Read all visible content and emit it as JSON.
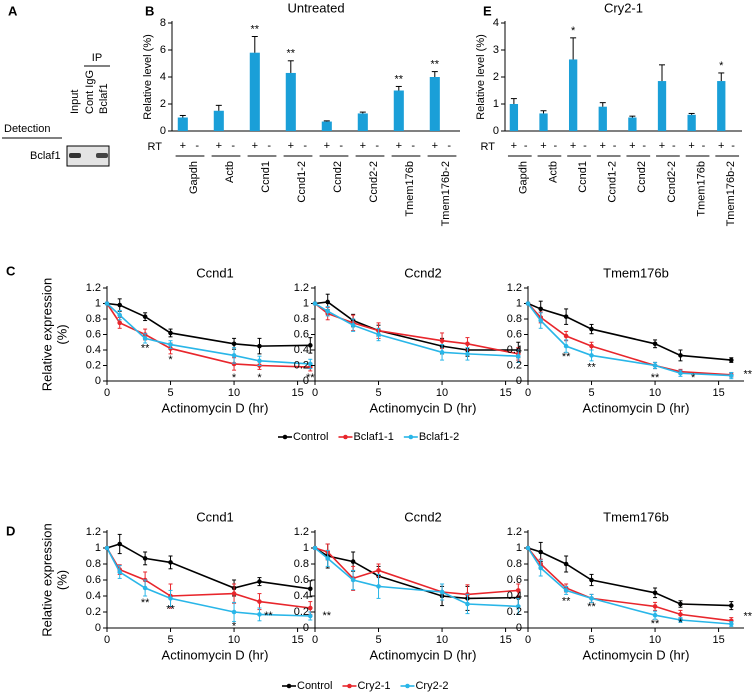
{
  "blot": {
    "panel": "A",
    "ip_label": "IP",
    "lanes": [
      "Input",
      "Cont IgG",
      "Bclaf1"
    ],
    "detection_header": "Detection",
    "rows": [
      "Bclaf1"
    ]
  },
  "chart_data": [
    {
      "type": "bar",
      "panel": "B",
      "title": "Untreated",
      "ylabel": "Relative level (%)",
      "row_label": "RT",
      "categories": [
        "Gapdh",
        "Actb",
        "Ccnd1",
        "Ccnd1-2",
        "Ccnd2",
        "Ccnd2-2",
        "Tmem176b",
        "Tmem176b-2"
      ],
      "series": [
        {
          "name": "+",
          "color": "#1a9fd8",
          "values": [
            1.0,
            1.5,
            5.8,
            4.3,
            0.7,
            1.3,
            3.0,
            4.0
          ],
          "errors": [
            0.15,
            0.4,
            1.2,
            0.9,
            0.05,
            0.1,
            0.3,
            0.4
          ]
        },
        {
          "name": "-",
          "color": "#1a9fd8",
          "values": [
            0,
            0,
            0,
            0,
            0,
            0,
            0,
            0
          ]
        }
      ],
      "ylim": [
        0,
        8
      ],
      "yticks": [
        0,
        2,
        4,
        6,
        8
      ],
      "annotations": [
        {
          "text": "**",
          "category": "Ccnd1"
        },
        {
          "text": "**",
          "category": "Ccnd1-2"
        },
        {
          "text": "**",
          "category": "Tmem176b"
        },
        {
          "text": "**",
          "category": "Tmem176b-2"
        }
      ]
    },
    {
      "type": "bar",
      "panel": "E",
      "title": "Cry2-1",
      "ylabel": "Relative level (%)",
      "row_label": "RT",
      "categories": [
        "Gapdh",
        "Actb",
        "Ccnd1",
        "Ccnd1-2",
        "Ccnd2",
        "Ccnd2-2",
        "Tmem176b",
        "Tmem176b-2"
      ],
      "series": [
        {
          "name": "+",
          "color": "#1a9fd8",
          "values": [
            1.0,
            0.65,
            2.65,
            0.9,
            0.5,
            1.85,
            0.6,
            1.85
          ],
          "errors": [
            0.2,
            0.1,
            0.8,
            0.15,
            0.05,
            0.6,
            0.05,
            0.3
          ]
        },
        {
          "name": "-",
          "color": "#1a9fd8",
          "values": [
            0,
            0,
            0,
            0,
            0,
            0,
            0,
            0
          ]
        }
      ],
      "ylim": [
        0,
        4
      ],
      "yticks": [
        0,
        1,
        2,
        3,
        4
      ],
      "annotations": [
        {
          "text": "*",
          "category": "Ccnd1"
        },
        {
          "text": "*",
          "category": "Tmem176b-2"
        }
      ]
    },
    {
      "type": "line",
      "panel": "C",
      "title": "Ccnd1",
      "ylabel": [
        "Relative expression",
        "(%)"
      ],
      "xlabel": "Actinomycin D (hr)",
      "x": [
        0,
        1,
        3,
        5,
        10,
        12,
        16
      ],
      "xlim": [
        0,
        17
      ],
      "xticks": [
        0,
        5,
        10,
        15
      ],
      "ylim": [
        0,
        1.2
      ],
      "yticks": [
        0,
        0.2,
        0.4,
        0.6,
        0.8,
        1,
        1.2
      ],
      "series": [
        {
          "name": "Control",
          "color": "#000000",
          "values": [
            1,
            0.98,
            0.83,
            0.62,
            0.48,
            0.45,
            0.46
          ],
          "errors": [
            0,
            0.08,
            0.05,
            0.05,
            0.07,
            0.1,
            0.1
          ]
        },
        {
          "name": "Bclaf1-1",
          "color": "#e8262c",
          "values": [
            1,
            0.75,
            0.6,
            0.42,
            0.22,
            0.2,
            0.18
          ],
          "errors": [
            0,
            0.07,
            0.07,
            0.07,
            0.08,
            0.05,
            0.05
          ]
        },
        {
          "name": "Bclaf1-2",
          "color": "#29b6e8",
          "values": [
            1,
            0.85,
            0.55,
            0.47,
            0.33,
            0.26,
            0.22
          ],
          "errors": [
            0,
            0.06,
            0.06,
            0.05,
            0.1,
            0.06,
            0.06
          ]
        }
      ],
      "annotations": [
        {
          "text": "**",
          "x": 3,
          "y": 0.42
        },
        {
          "text": "*",
          "x": 5,
          "y": 0.27
        },
        {
          "text": "*",
          "x": 10,
          "y": 0.04
        },
        {
          "text": "*",
          "x": 12,
          "y": 0.04
        },
        {
          "text": "**",
          "x": 16,
          "y": 0.04
        }
      ]
    },
    {
      "type": "line",
      "title": "Ccnd2",
      "xlabel": "Actinomycin D (hr)",
      "legend": true,
      "x": [
        0,
        1,
        3,
        5,
        10,
        12,
        16
      ],
      "xlim": [
        0,
        17
      ],
      "xticks": [
        0,
        5,
        10,
        15
      ],
      "ylim": [
        0,
        1.2
      ],
      "yticks": [
        0,
        0.2,
        0.4,
        0.6,
        0.8,
        1,
        1.2
      ],
      "series": [
        {
          "name": "Control",
          "color": "#000000",
          "values": [
            1,
            1.02,
            0.78,
            0.65,
            0.45,
            0.4,
            0.4
          ],
          "errors": [
            0,
            0.1,
            0.08,
            0.07,
            0.1,
            0.08,
            0.1
          ]
        },
        {
          "name": "Bclaf1-1",
          "color": "#e8262c",
          "values": [
            1,
            0.87,
            0.75,
            0.65,
            0.52,
            0.48,
            0.35
          ],
          "errors": [
            0,
            0.08,
            0.1,
            0.1,
            0.1,
            0.08,
            0.08
          ]
        },
        {
          "name": "Bclaf1-2",
          "color": "#29b6e8",
          "values": [
            1,
            0.9,
            0.72,
            0.6,
            0.37,
            0.35,
            0.32
          ],
          "errors": [
            0,
            0.06,
            0.08,
            0.08,
            0.1,
            0.08,
            0.08
          ]
        }
      ]
    },
    {
      "type": "line",
      "title": "Tmem176b",
      "xlabel": "Actinomycin D (hr)",
      "x": [
        0,
        1,
        3,
        5,
        10,
        12,
        16
      ],
      "xlim": [
        0,
        17
      ],
      "xticks": [
        0,
        5,
        10,
        15
      ],
      "ylim": [
        0,
        1.2
      ],
      "yticks": [
        0,
        0.2,
        0.4,
        0.6,
        0.8,
        1,
        1.2
      ],
      "series": [
        {
          "name": "Control",
          "color": "#000000",
          "values": [
            1,
            0.93,
            0.83,
            0.67,
            0.48,
            0.33,
            0.27
          ],
          "errors": [
            0,
            0.1,
            0.1,
            0.06,
            0.05,
            0.07,
            0.03
          ]
        },
        {
          "name": "Bclaf1-1",
          "color": "#e8262c",
          "values": [
            1,
            0.82,
            0.58,
            0.45,
            0.2,
            0.12,
            0.08
          ],
          "errors": [
            0,
            0.07,
            0.06,
            0.05,
            0.04,
            0.03,
            0.03
          ]
        },
        {
          "name": "Bclaf1-2",
          "color": "#29b6e8",
          "values": [
            1,
            0.78,
            0.45,
            0.33,
            0.2,
            0.1,
            0.07
          ],
          "errors": [
            0,
            0.1,
            0.08,
            0.07,
            0.04,
            0.04,
            0.04
          ]
        }
      ],
      "annotations": [
        {
          "text": "**",
          "x": 3,
          "y": 0.31
        },
        {
          "text": "**",
          "x": 5,
          "y": 0.17
        },
        {
          "text": "**",
          "x": 10,
          "y": 0.04
        },
        {
          "text": "*",
          "x": 13,
          "y": 0.04
        },
        {
          "text": "**",
          "x": 17.3,
          "y": 0.08
        }
      ]
    },
    {
      "type": "line",
      "panel": "D",
      "title": "Ccnd1",
      "ylabel": [
        "Relative expression",
        "(%)"
      ],
      "xlabel": "Actinomycin D (hr)",
      "x": [
        0,
        1,
        3,
        5,
        10,
        12,
        16
      ],
      "xlim": [
        0,
        17
      ],
      "xticks": [
        0,
        5,
        10,
        15
      ],
      "ylim": [
        0,
        1.2
      ],
      "yticks": [
        0,
        0.2,
        0.4,
        0.6,
        0.8,
        1,
        1.2
      ],
      "series": [
        {
          "name": "Control",
          "color": "#000000",
          "values": [
            1,
            1.05,
            0.87,
            0.82,
            0.5,
            0.58,
            0.49
          ],
          "errors": [
            0,
            0.12,
            0.08,
            0.08,
            0.1,
            0.05,
            0.1
          ]
        },
        {
          "name": "Cry2-1",
          "color": "#e8262c",
          "values": [
            1,
            0.73,
            0.6,
            0.4,
            0.43,
            0.33,
            0.25
          ],
          "errors": [
            0,
            0.06,
            0.1,
            0.15,
            0.12,
            0.1,
            0.08
          ]
        },
        {
          "name": "Cry2-2",
          "color": "#29b6e8",
          "values": [
            1,
            0.7,
            0.5,
            0.37,
            0.2,
            0.17,
            0.15
          ],
          "errors": [
            0,
            0.08,
            0.1,
            0.1,
            0.12,
            0.08,
            0.05
          ]
        }
      ],
      "annotations": [
        {
          "text": "**",
          "x": 3,
          "y": 0.31
        },
        {
          "text": "**",
          "x": 5,
          "y": 0.23
        },
        {
          "text": "*",
          "x": 10,
          "y": 0.02
        },
        {
          "text": "**",
          "x": 12.7,
          "y": 0.15
        },
        {
          "text": "**",
          "x": 17.3,
          "y": 0.15
        }
      ]
    },
    {
      "type": "line",
      "title": "Ccnd2",
      "xlabel": "Actinomycin D (hr)",
      "legend": true,
      "x": [
        0,
        1,
        3,
        5,
        10,
        12,
        16
      ],
      "xlim": [
        0,
        17
      ],
      "xticks": [
        0,
        5,
        10,
        15
      ],
      "ylim": [
        0,
        1.2
      ],
      "yticks": [
        0,
        0.2,
        0.4,
        0.6,
        0.8,
        1,
        1.2
      ],
      "series": [
        {
          "name": "Control",
          "color": "#000000",
          "values": [
            1,
            0.9,
            0.83,
            0.65,
            0.4,
            0.37,
            0.38
          ],
          "errors": [
            0,
            0.15,
            0.12,
            0.12,
            0.12,
            0.15,
            0.1
          ]
        },
        {
          "name": "Cry2-1",
          "color": "#e8262c",
          "values": [
            1,
            0.95,
            0.62,
            0.72,
            0.45,
            0.42,
            0.47
          ],
          "errors": [
            0,
            0.1,
            0.15,
            0.08,
            0.1,
            0.12,
            0.08
          ]
        },
        {
          "name": "Cry2-2",
          "color": "#29b6e8",
          "values": [
            1,
            0.87,
            0.6,
            0.52,
            0.45,
            0.3,
            0.27
          ],
          "errors": [
            0,
            0.1,
            0.12,
            0.15,
            0.1,
            0.12,
            0.1
          ]
        }
      ]
    },
    {
      "type": "line",
      "title": "Tmem176b",
      "xlabel": "Actinomycin D (hr)",
      "x": [
        0,
        1,
        3,
        5,
        10,
        12,
        16
      ],
      "xlim": [
        0,
        17
      ],
      "xticks": [
        0,
        5,
        10,
        15
      ],
      "ylim": [
        0,
        1.2
      ],
      "yticks": [
        0,
        0.2,
        0.4,
        0.6,
        0.8,
        1,
        1.2
      ],
      "series": [
        {
          "name": "Control",
          "color": "#000000",
          "values": [
            1,
            0.95,
            0.8,
            0.6,
            0.44,
            0.3,
            0.28
          ],
          "errors": [
            0,
            0.12,
            0.1,
            0.07,
            0.06,
            0.04,
            0.05
          ]
        },
        {
          "name": "Cry2-1",
          "color": "#e8262c",
          "values": [
            1,
            0.8,
            0.5,
            0.37,
            0.27,
            0.17,
            0.09
          ],
          "errors": [
            0,
            0.06,
            0.05,
            0.05,
            0.05,
            0.05,
            0.04
          ]
        },
        {
          "name": "Cry2-2",
          "color": "#29b6e8",
          "values": [
            1,
            0.75,
            0.47,
            0.37,
            0.16,
            0.1,
            0.05
          ],
          "errors": [
            0,
            0.1,
            0.05,
            0.05,
            0.05,
            0.03,
            0.03
          ]
        }
      ],
      "annotations": [
        {
          "text": "**",
          "x": 3,
          "y": 0.33
        },
        {
          "text": "**",
          "x": 5,
          "y": 0.26
        },
        {
          "text": "**",
          "x": 10,
          "y": 0.05
        },
        {
          "text": "*",
          "x": 12,
          "y": 0.06
        },
        {
          "text": "**",
          "x": 17.3,
          "y": 0.14
        }
      ]
    }
  ]
}
